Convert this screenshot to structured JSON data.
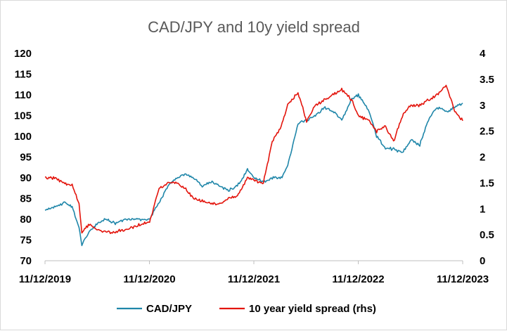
{
  "chart_data": {
    "type": "line",
    "title": "CAD/JPY and 10y yield spread",
    "x_tick_labels": [
      "11/12/2019",
      "11/12/2020",
      "11/12/2021",
      "11/12/2022",
      "11/12/2023"
    ],
    "xlim": [
      "2019-11-12",
      "2023-11-12"
    ],
    "y_left": {
      "ylim": [
        70,
        120
      ],
      "ticks": [
        70,
        75,
        80,
        85,
        90,
        95,
        100,
        105,
        110,
        115,
        120
      ]
    },
    "y_right": {
      "ylim": [
        0,
        4
      ],
      "ticks": [
        0,
        0.5,
        1,
        1.5,
        2,
        2.5,
        3,
        3.5,
        4
      ]
    },
    "grid": false,
    "legend_position": "bottom",
    "series": [
      {
        "name": "CAD/JPY",
        "axis": "left",
        "color": "#1f86a9",
        "x": [
          "2019-11-12",
          "2019-12-15",
          "2020-01-20",
          "2020-02-15",
          "2020-03-10",
          "2020-03-20",
          "2020-04-15",
          "2020-05-15",
          "2020-06-10",
          "2020-07-15",
          "2020-08-15",
          "2020-09-15",
          "2020-10-15",
          "2020-11-12",
          "2020-12-15",
          "2021-01-15",
          "2021-02-15",
          "2021-03-15",
          "2021-04-15",
          "2021-05-15",
          "2021-06-15",
          "2021-07-15",
          "2021-08-15",
          "2021-09-15",
          "2021-10-20",
          "2021-11-12",
          "2021-12-15",
          "2022-01-15",
          "2022-02-15",
          "2022-03-10",
          "2022-04-15",
          "2022-05-15",
          "2022-06-15",
          "2022-07-15",
          "2022-08-15",
          "2022-09-15",
          "2022-10-20",
          "2022-11-12",
          "2022-12-20",
          "2023-01-15",
          "2023-02-15",
          "2023-03-15",
          "2023-04-15",
          "2023-05-15",
          "2023-06-15",
          "2023-07-15",
          "2023-08-15",
          "2023-09-15",
          "2023-10-15",
          "2023-11-12"
        ],
        "values": [
          82,
          83,
          84,
          83,
          78,
          74,
          77,
          79,
          80,
          79,
          80,
          80,
          80,
          80,
          84,
          88,
          90,
          91,
          90,
          88,
          89,
          88,
          87,
          88,
          92,
          90,
          89,
          90,
          90,
          93,
          103,
          104,
          105,
          107,
          106,
          104,
          109,
          110,
          106,
          100,
          97,
          97,
          96,
          99,
          98,
          104,
          107,
          106,
          107,
          108
        ]
      },
      {
        "name": "10 year yield spread (rhs)",
        "axis": "right",
        "color": "#e3140c",
        "x": [
          "2019-11-12",
          "2019-12-15",
          "2020-01-20",
          "2020-02-15",
          "2020-03-10",
          "2020-03-20",
          "2020-04-15",
          "2020-05-15",
          "2020-06-10",
          "2020-07-15",
          "2020-08-15",
          "2020-09-15",
          "2020-10-15",
          "2020-11-12",
          "2020-12-15",
          "2021-01-15",
          "2021-02-15",
          "2021-03-15",
          "2021-04-15",
          "2021-05-15",
          "2021-06-15",
          "2021-07-15",
          "2021-08-15",
          "2021-09-15",
          "2021-10-20",
          "2021-11-12",
          "2021-12-15",
          "2022-01-15",
          "2022-02-15",
          "2022-03-10",
          "2022-04-15",
          "2022-05-15",
          "2022-06-15",
          "2022-07-15",
          "2022-08-15",
          "2022-09-15",
          "2022-10-20",
          "2022-11-12",
          "2022-12-20",
          "2023-01-15",
          "2023-02-15",
          "2023-03-15",
          "2023-04-15",
          "2023-05-15",
          "2023-06-15",
          "2023-07-15",
          "2023-08-15",
          "2023-09-15",
          "2023-10-15",
          "2023-11-12"
        ],
        "values": [
          1.6,
          1.6,
          1.5,
          1.45,
          1.1,
          0.55,
          0.7,
          0.6,
          0.55,
          0.55,
          0.6,
          0.65,
          0.7,
          0.75,
          1.4,
          1.5,
          1.5,
          1.4,
          1.2,
          1.15,
          1.1,
          1.1,
          1.2,
          1.25,
          1.6,
          1.55,
          1.5,
          2.3,
          2.6,
          3.0,
          3.25,
          2.7,
          3.0,
          3.1,
          3.2,
          3.3,
          3.1,
          2.8,
          2.7,
          2.5,
          2.6,
          2.3,
          2.8,
          3.0,
          3.0,
          3.1,
          3.2,
          3.4,
          2.9,
          2.7
        ]
      }
    ]
  }
}
